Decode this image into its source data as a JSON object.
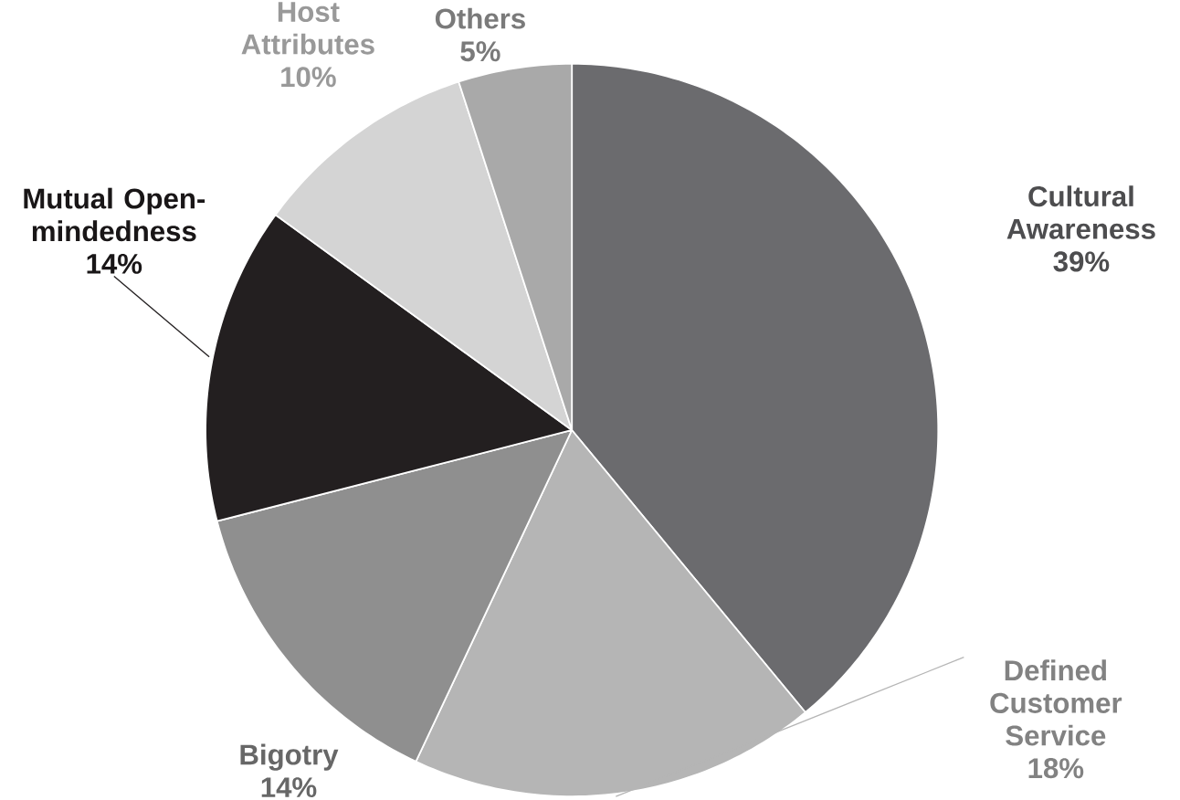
{
  "chart_data": {
    "type": "pie",
    "categories": [
      "Cultural Awareness",
      "Defined Customer Service",
      "Bigotry",
      "Mutual Open-mindedness",
      "Host Attributes",
      "Others"
    ],
    "values": [
      39,
      18,
      14,
      14,
      10,
      5
    ],
    "value_labels": [
      "39%",
      "18%",
      "14%",
      "14%",
      "10%",
      "5%"
    ],
    "colors": [
      "#6b6b6e",
      "#b5b5b5",
      "#8f8f8f",
      "#231f20",
      "#d4d4d4",
      "#a9a9a9"
    ]
  }
}
